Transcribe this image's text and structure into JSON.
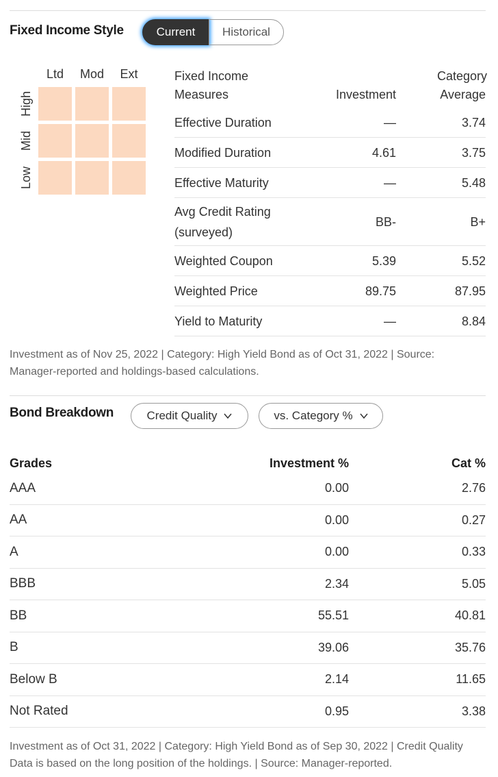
{
  "fixed_income_style": {
    "title": "Fixed Income Style",
    "tabs": [
      "Current",
      "Historical"
    ],
    "style_box": {
      "columns": [
        "Ltd",
        "Mod",
        "Ext"
      ],
      "rows": [
        "High",
        "Mid",
        "Low"
      ]
    },
    "measures": {
      "headers": [
        "Fixed Income Measures",
        "Investment",
        "Category Average"
      ],
      "rows": [
        [
          "Effective Duration",
          "—",
          "3.74"
        ],
        [
          "Modified Duration",
          "4.61",
          "3.75"
        ],
        [
          "Effective Maturity",
          "—",
          "5.48"
        ],
        [
          "Avg Credit Rating (surveyed)",
          "BB-",
          "B+"
        ],
        [
          "Weighted Coupon",
          "5.39",
          "5.52"
        ],
        [
          "Weighted Price",
          "89.75",
          "87.95"
        ],
        [
          "Yield to Maturity",
          "—",
          "8.84"
        ]
      ]
    },
    "footnote": "Investment as of Nov 25, 2022 | Category: High Yield Bond as of Oct 31, 2022 | Source: Manager-reported and holdings-based calculations."
  },
  "bond_breakdown": {
    "title": "Bond Breakdown",
    "dropdowns": [
      "Credit Quality",
      "vs. Category %"
    ],
    "table": {
      "headers": [
        "Grades",
        "Investment %",
        "Cat %"
      ],
      "rows": [
        [
          "AAA",
          "0.00",
          "2.76"
        ],
        [
          "AA",
          "0.00",
          "0.27"
        ],
        [
          "A",
          "0.00",
          "0.33"
        ],
        [
          "BBB",
          "2.34",
          "5.05"
        ],
        [
          "BB",
          "55.51",
          "40.81"
        ],
        [
          "B",
          "39.06",
          "35.76"
        ],
        [
          "Below B",
          "2.14",
          "11.65"
        ],
        [
          "Not Rated",
          "0.95",
          "3.38"
        ]
      ]
    },
    "footnote": "Investment as of Oct 31, 2022 | Category: High Yield Bond as of Sep 30, 2022 | Credit Quality Data is based on the long position of the holdings. | Source: Manager-reported."
  }
}
